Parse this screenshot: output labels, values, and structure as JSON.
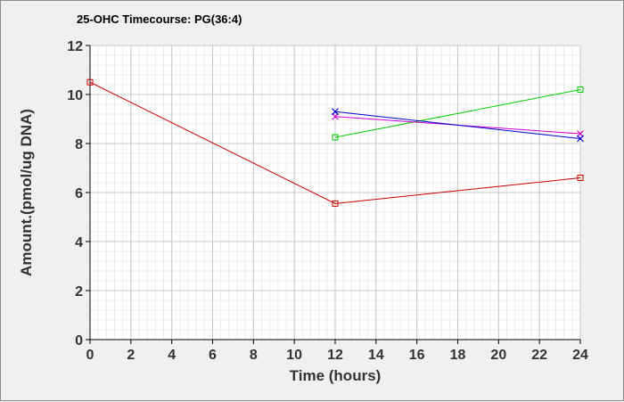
{
  "chart_data": {
    "type": "line",
    "title": "25-OHC Timecourse: PG(36:4)",
    "xlabel": "Time (hours)",
    "ylabel": "Amount.(pmol/ug DNA)",
    "xlim": [
      0,
      24
    ],
    "ylim": [
      0,
      12
    ],
    "xticks": [
      "0",
      "2",
      "4",
      "6",
      "8",
      "10",
      "12",
      "14",
      "16",
      "18",
      "20",
      "22",
      "24"
    ],
    "yticks": [
      "0",
      "2",
      "4",
      "6",
      "8",
      "10",
      "12"
    ],
    "grid": true,
    "series": [
      {
        "color": "#cc0000",
        "marker": "square",
        "points": [
          [
            0,
            10.5
          ],
          [
            12,
            5.55
          ],
          [
            24,
            6.6
          ]
        ]
      },
      {
        "color": "#00cc00",
        "marker": "square",
        "points": [
          [
            12,
            8.25
          ],
          [
            24,
            10.2
          ]
        ]
      },
      {
        "color": "#cc00cc",
        "marker": "x",
        "points": [
          [
            12,
            9.1
          ],
          [
            24,
            8.4
          ]
        ]
      },
      {
        "color": "#0000cc",
        "marker": "x",
        "points": [
          [
            12,
            9.3
          ],
          [
            24,
            8.2
          ]
        ]
      }
    ]
  }
}
